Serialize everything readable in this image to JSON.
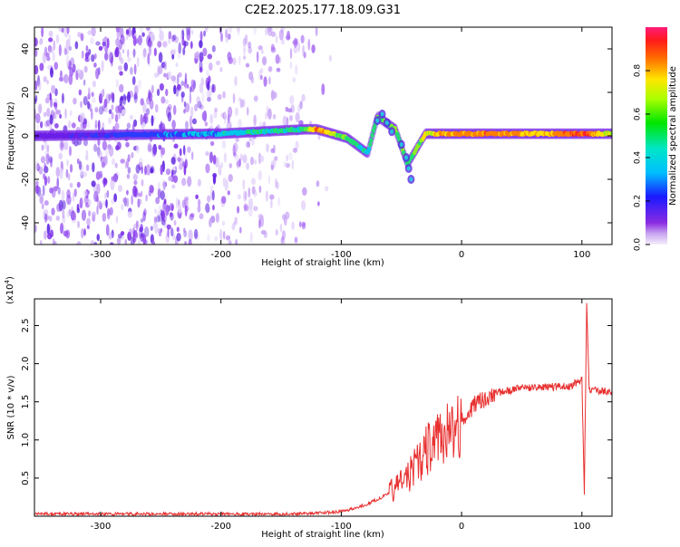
{
  "title": "C2E2.2025.177.18.09.G31",
  "colorbar": {
    "label": "Normalized spectral amplitude",
    "ticks": [
      "0.0",
      "0.2",
      "0.4",
      "0.6",
      "0.8"
    ],
    "tick_values": [
      0.0,
      0.2,
      0.4,
      0.6,
      0.8
    ]
  },
  "chart_data": [
    {
      "type": "heatmap",
      "title": "",
      "xlabel": "Height of straight line (km)",
      "ylabel": "Frequency (Hz)",
      "xlim": [
        -355,
        125
      ],
      "ylim": [
        -50,
        50
      ],
      "xticks": [
        -300,
        -200,
        -100,
        0,
        100
      ],
      "xtick_labels": [
        "-300",
        "-200",
        "-100",
        "0",
        "100"
      ],
      "yticks": [
        -40,
        -20,
        0,
        20,
        40
      ],
      "ytick_labels": [
        "-40",
        "-20",
        "0",
        "20",
        "40"
      ],
      "colormap": "rainbow (purple-blue-cyan-green-yellow-red-magenta)",
      "description_points": [
        {
          "x": -355,
          "y": 0,
          "amplitude": 0.05
        },
        {
          "x": -200,
          "y": 1,
          "amplitude": 0.35
        },
        {
          "x": -130,
          "y": 3,
          "amplitude": 0.45
        },
        {
          "x": -120,
          "y": 3,
          "amplitude": 0.75
        },
        {
          "x": -95,
          "y": -1,
          "amplitude": 0.45
        },
        {
          "x": -78,
          "y": -8,
          "amplitude": 0.4
        },
        {
          "x": -70,
          "y": 9,
          "amplitude": 0.5
        },
        {
          "x": -55,
          "y": 3,
          "amplitude": 0.5
        },
        {
          "x": -45,
          "y": -13,
          "amplitude": 0.45
        },
        {
          "x": -30,
          "y": 1,
          "amplitude": 0.6
        },
        {
          "x": 0,
          "y": 1,
          "amplitude": 0.75
        },
        {
          "x": 30,
          "y": 1,
          "amplitude": 0.75
        },
        {
          "x": 70,
          "y": 1,
          "amplitude": 0.65
        },
        {
          "x": 100,
          "y": 1,
          "amplitude": 0.85
        },
        {
          "x": 125,
          "y": 1,
          "amplitude": 0.55
        }
      ]
    },
    {
      "type": "line",
      "title": "",
      "xlabel": "Height of straight line (km)",
      "ylabel": "SNR (10 * v/v)",
      "y_multiplier": "(x10",
      "y_multiplier_exp": "4",
      "y_multiplier_close": ")",
      "xlim": [
        -355,
        125
      ],
      "ylim": [
        0,
        2.85
      ],
      "xticks": [
        -300,
        -200,
        -100,
        0,
        100
      ],
      "xtick_labels": [
        "-300",
        "-200",
        "-100",
        "0",
        "100"
      ],
      "yticks": [
        0.5,
        1.0,
        1.5,
        2.0,
        2.5
      ],
      "ytick_labels": [
        "0.5",
        "1.0",
        "1.5",
        "2.0",
        "2.5"
      ],
      "series": [
        {
          "color": "#e83030",
          "x": [
            -355,
            -300,
            -250,
            -200,
            -150,
            -120,
            -100,
            -90,
            -80,
            -70,
            -60,
            -50,
            -40,
            -35,
            -30,
            -25,
            -20,
            -15,
            -10,
            -5,
            0,
            10,
            20,
            30,
            40,
            50,
            60,
            70,
            80,
            90,
            95,
            100,
            102,
            104,
            106,
            110,
            115,
            120,
            125
          ],
          "y": [
            0.03,
            0.03,
            0.03,
            0.03,
            0.03,
            0.04,
            0.06,
            0.1,
            0.15,
            0.22,
            0.3,
            0.45,
            0.6,
            0.75,
            0.85,
            0.95,
            1.0,
            1.05,
            1.1,
            1.15,
            1.25,
            1.45,
            1.55,
            1.62,
            1.65,
            1.68,
            1.68,
            1.69,
            1.7,
            1.7,
            1.75,
            1.78,
            0.3,
            2.8,
            1.65,
            1.65,
            1.65,
            1.64,
            1.63
          ]
        }
      ]
    }
  ]
}
